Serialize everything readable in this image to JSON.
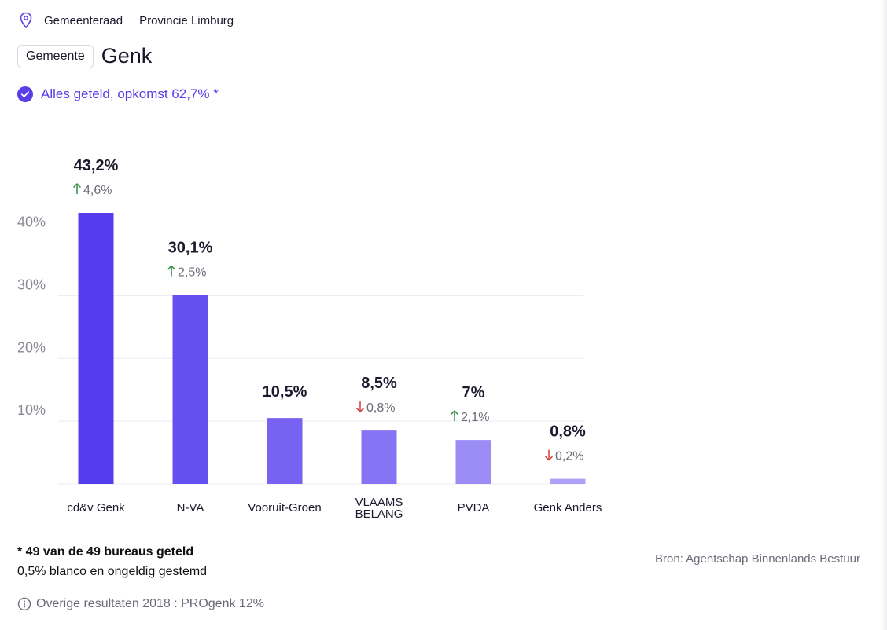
{
  "breadcrumb": {
    "items": [
      "Gemeenteraad",
      "Provincie Limburg"
    ],
    "icon": "location-pin-icon"
  },
  "header": {
    "chip_label": "Gemeente",
    "title": "Genk"
  },
  "status": {
    "text": "Alles geteld, opkomst 62,7% *",
    "icon": "check-circle-icon"
  },
  "colors": {
    "accent": "#5a3ee8",
    "up": "#2e8b3e",
    "down": "#d23b3b",
    "bars": [
      "#553ded",
      "#644ff0",
      "#7762f2",
      "#8774f4",
      "#9c8df6",
      "#aea1f8"
    ]
  },
  "chart_data": {
    "type": "bar",
    "categories": [
      "cd&v Genk",
      "N-VA",
      "Vooruit-Groen",
      "VLAAMS BELANG",
      "PVDA",
      "Genk Anders"
    ],
    "values": [
      43.2,
      30.1,
      10.5,
      8.5,
      7.0,
      0.8
    ],
    "value_labels": [
      "43,2%",
      "30,1%",
      "10,5%",
      "8,5%",
      "7%",
      "0,8%"
    ],
    "change_labels": [
      "4,6%",
      "2,5%",
      "",
      "0,8%",
      "2,1%",
      "0,2%"
    ],
    "change_direction": [
      "up",
      "up",
      "none",
      "down",
      "up",
      "down"
    ],
    "ylim": [
      0,
      43.2
    ],
    "yticks": [
      10,
      20,
      30,
      40
    ],
    "ytick_labels": [
      "10%",
      "20%",
      "30%",
      "40%"
    ],
    "grid": true,
    "title": "",
    "xlabel": "",
    "ylabel": ""
  },
  "notes": {
    "line1": "* 49 van de 49 bureaus geteld",
    "line2": "0,5% blanco en ongeldig gestemd"
  },
  "source": "Bron: Agentschap Binnenlands Bestuur",
  "other_results": {
    "text": "Overige resultaten 2018 : PROgenk 12%",
    "icon": "info-circle-icon"
  }
}
